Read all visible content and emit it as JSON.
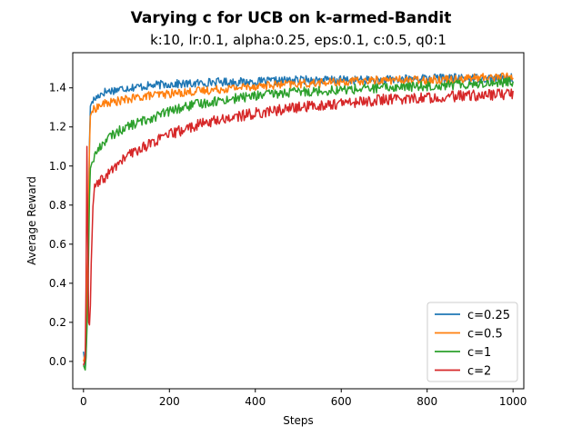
{
  "chart_data": {
    "type": "line",
    "title": "Varying c for UCB on k-armed-Bandit",
    "subtitle": "k:10, lr:0.1, alpha:0.25, eps:0.1, c:0.5, q0:1",
    "xlabel": "Steps",
    "ylabel": "Average Reward",
    "xlim": [
      -25,
      1025
    ],
    "ylim": [
      -0.14,
      1.58
    ],
    "x_ticks": [
      0,
      200,
      400,
      600,
      800,
      1000
    ],
    "y_ticks": [
      0.0,
      0.2,
      0.4,
      0.6,
      0.8,
      1.0,
      1.2,
      1.4
    ],
    "x_tick_labels": [
      "0",
      "200",
      "400",
      "600",
      "800",
      "1000"
    ],
    "y_tick_labels": [
      "0.0",
      "0.2",
      "0.4",
      "0.6",
      "0.8",
      "1.0",
      "1.2",
      "1.4"
    ],
    "grid": false,
    "legend_position": "bottom-right",
    "series": [
      {
        "name": "c=0.25",
        "color": "#1f77b4",
        "x": [
          0,
          5,
          10,
          15,
          20,
          30,
          40,
          50,
          75,
          100,
          150,
          200,
          250,
          300,
          400,
          500,
          600,
          700,
          800,
          900,
          1000
        ],
        "y": [
          0.05,
          -0.05,
          0.4,
          1.3,
          1.33,
          1.35,
          1.37,
          1.38,
          1.39,
          1.4,
          1.41,
          1.42,
          1.42,
          1.43,
          1.43,
          1.44,
          1.44,
          1.44,
          1.45,
          1.45,
          1.45
        ]
      },
      {
        "name": "c=0.5",
        "color": "#ff7f0e",
        "x": [
          0,
          5,
          10,
          15,
          20,
          30,
          40,
          50,
          75,
          100,
          150,
          200,
          250,
          300,
          400,
          500,
          600,
          700,
          800,
          900,
          1000
        ],
        "y": [
          0.0,
          0.05,
          0.5,
          1.25,
          1.28,
          1.3,
          1.31,
          1.32,
          1.33,
          1.34,
          1.36,
          1.37,
          1.38,
          1.39,
          1.41,
          1.42,
          1.43,
          1.44,
          1.44,
          1.45,
          1.46
        ]
      },
      {
        "name": "c=1",
        "color": "#2ca02c",
        "x": [
          0,
          5,
          10,
          15,
          20,
          30,
          40,
          50,
          75,
          100,
          150,
          200,
          250,
          300,
          400,
          500,
          600,
          700,
          800,
          900,
          1000
        ],
        "y": [
          -0.02,
          -0.05,
          0.3,
          0.98,
          1.02,
          1.07,
          1.1,
          1.13,
          1.17,
          1.2,
          1.24,
          1.28,
          1.31,
          1.33,
          1.36,
          1.38,
          1.39,
          1.4,
          1.41,
          1.42,
          1.43
        ]
      },
      {
        "name": "c=2",
        "color": "#d62728",
        "x": [
          0,
          5,
          8,
          12,
          15,
          18,
          22,
          25,
          30,
          40,
          50,
          75,
          100,
          150,
          200,
          250,
          300,
          400,
          500,
          600,
          700,
          800,
          900,
          1000
        ],
        "y": [
          -0.02,
          0.02,
          1.1,
          0.2,
          0.18,
          0.5,
          0.8,
          0.88,
          0.9,
          0.92,
          0.94,
          1.0,
          1.05,
          1.11,
          1.16,
          1.2,
          1.23,
          1.27,
          1.3,
          1.32,
          1.34,
          1.35,
          1.36,
          1.37
        ]
      }
    ]
  }
}
